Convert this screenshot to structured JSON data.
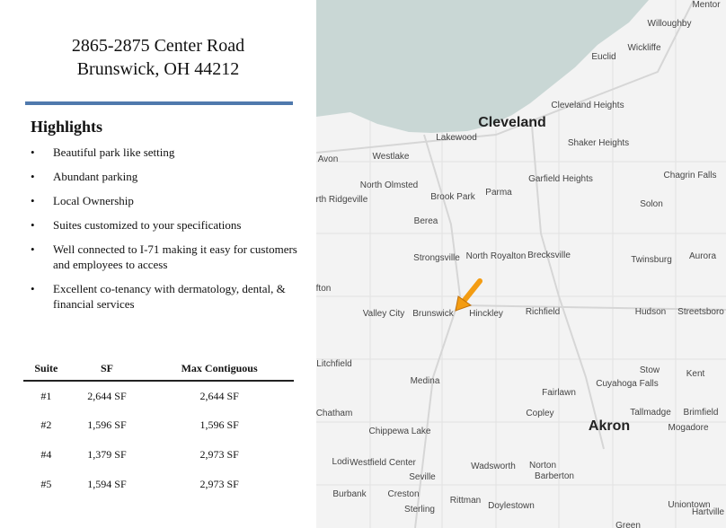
{
  "address": {
    "line1": "2865-2875 Center Road",
    "line2": "Brunswick, OH 44212"
  },
  "highlights": {
    "title": "Highlights",
    "items": [
      "Beautiful park like setting",
      "Abundant parking",
      "Local Ownership",
      "Suites customized to your specifications",
      "Well connected to I-71 making it easy for customers and employees to access",
      "Excellent co-tenancy with dermatology, dental, & financial services"
    ]
  },
  "table": {
    "headers": [
      "Suite",
      "SF",
      "Max Contiguous"
    ],
    "rows": [
      [
        "#1",
        "2,644 SF",
        "2,644 SF"
      ],
      [
        "#2",
        "1,596 SF",
        "1,596 SF"
      ],
      [
        "#4",
        "1,379 SF",
        "2,973 SF"
      ],
      [
        "#5",
        "1,594 SF",
        "2,973 SF"
      ]
    ]
  },
  "map": {
    "lake_color": "#c9d7d5",
    "marker_color": "#f39c12",
    "marker_icon": "arrow-marker-icon",
    "places": [
      "Mentor",
      "Willoughby",
      "Wickliffe",
      "Euclid",
      "Cleveland Heights",
      "Cleveland",
      "Lakewood",
      "Shaker Heights",
      "Avon",
      "Westlake",
      "Chagrin Falls",
      "North Olmsted",
      "Garfield Heights",
      "Brook Park",
      "Parma",
      "North Ridgeville",
      "Solon",
      "Berea",
      "Strongsville",
      "North Royalton",
      "Brecksville",
      "Twinsburg",
      "Aurora",
      "fton",
      "Valley City",
      "Brunswick",
      "Hinckley",
      "Richfield",
      "Hudson",
      "Streetsboro",
      "Litchfield",
      "Stow",
      "Kent",
      "Medina",
      "Cuyahoga Falls",
      "Fairlawn",
      "Chatham",
      "Copley",
      "Tallmadge",
      "Brimfield",
      "Akron",
      "Chippewa Lake",
      "Mogadore",
      "Lodi",
      "Westfield Center",
      "Seville",
      "Wadsworth",
      "Norton",
      "Barberton",
      "Burbank",
      "Creston",
      "Rittman",
      "Doylestown",
      "Sterling",
      "Uniontown",
      "Hartville",
      "Green"
    ]
  }
}
